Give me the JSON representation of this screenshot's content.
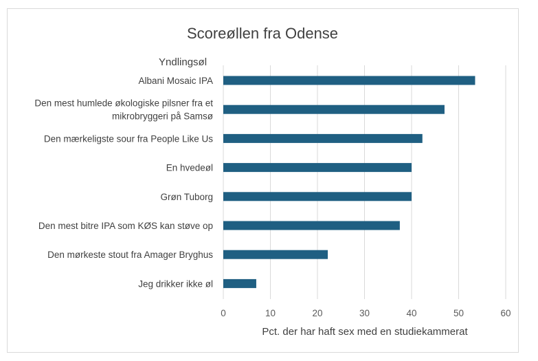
{
  "chart_data": {
    "type": "bar",
    "orientation": "horizontal",
    "title": "Scoreøllen fra Odense",
    "ylabel": "Yndlingsøl",
    "xlabel": "Pct. der har haft sex med en studiekammerat",
    "xlim": [
      0,
      60
    ],
    "xticks": [
      "0",
      "10",
      "20",
      "30",
      "40",
      "50",
      "60"
    ],
    "grid": true,
    "legend": "none",
    "bar_color": "#1f5f82",
    "categories": [
      [
        "Albani Mosaic IPA"
      ],
      [
        "Den mest humlede økologiske pilsner fra et",
        "mikrobryggeri på Samsø"
      ],
      [
        "Den mærkeligste sour fra People Like Us"
      ],
      [
        "En hvedeøl"
      ],
      [
        "Grøn Tuborg"
      ],
      [
        "Den mest bitre IPA som KØS kan støve op"
      ],
      [
        "Den mørkeste stout fra Amager Bryghus"
      ],
      [
        "Jeg drikker ikke øl"
      ]
    ],
    "values": [
      53.5,
      47,
      42.3,
      40,
      40,
      37.5,
      22.2,
      7
    ]
  }
}
